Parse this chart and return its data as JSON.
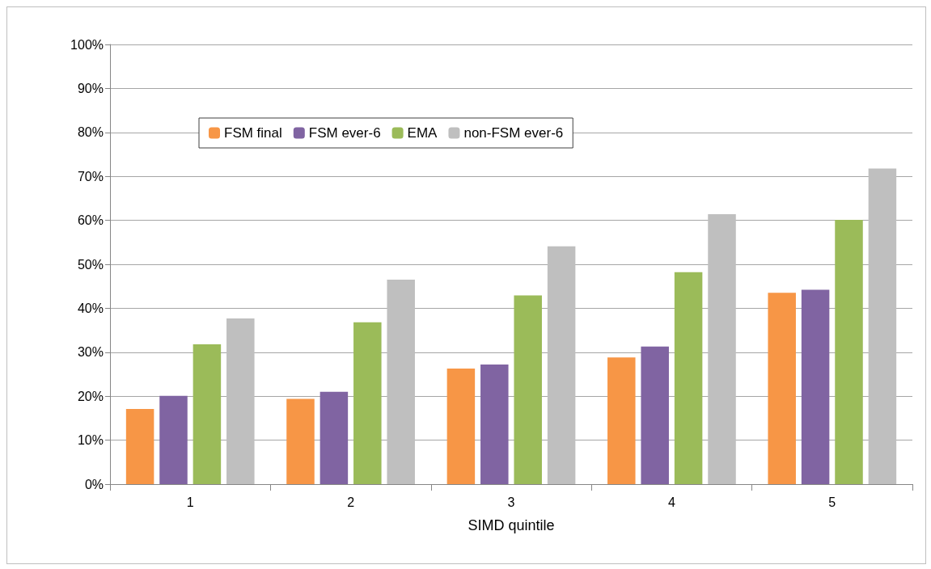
{
  "chart_data": {
    "type": "bar",
    "xlabel": "SIMD quintile",
    "categories": [
      "1",
      "2",
      "3",
      "4",
      "5"
    ],
    "series": [
      {
        "name": "FSM final",
        "color": "#f79646",
        "values": [
          17.1,
          19.4,
          26.3,
          28.8,
          43.5
        ]
      },
      {
        "name": "FSM ever-6",
        "color": "#8064a2",
        "values": [
          20.1,
          21.0,
          27.2,
          31.3,
          44.2
        ]
      },
      {
        "name": "EMA",
        "color": "#9bbb59",
        "values": [
          31.8,
          36.8,
          42.9,
          48.2,
          60.1
        ]
      },
      {
        "name": "non-FSM ever-6",
        "color": "#bfbfbf",
        "values": [
          37.7,
          46.5,
          54.1,
          61.4,
          71.8
        ]
      }
    ],
    "ylim": [
      0,
      100
    ],
    "yticks": [
      {
        "value": 0,
        "label": "0%"
      },
      {
        "value": 10,
        "label": "10%"
      },
      {
        "value": 20,
        "label": "20%"
      },
      {
        "value": 30,
        "label": "30%"
      },
      {
        "value": 40,
        "label": "40%"
      },
      {
        "value": 50,
        "label": "50%"
      },
      {
        "value": 60,
        "label": "60%"
      },
      {
        "value": 70,
        "label": "70%"
      },
      {
        "value": 80,
        "label": "80%"
      },
      {
        "value": 90,
        "label": "90%"
      },
      {
        "value": 100,
        "label": "100%"
      }
    ],
    "grid": "y",
    "legend": "top left"
  }
}
